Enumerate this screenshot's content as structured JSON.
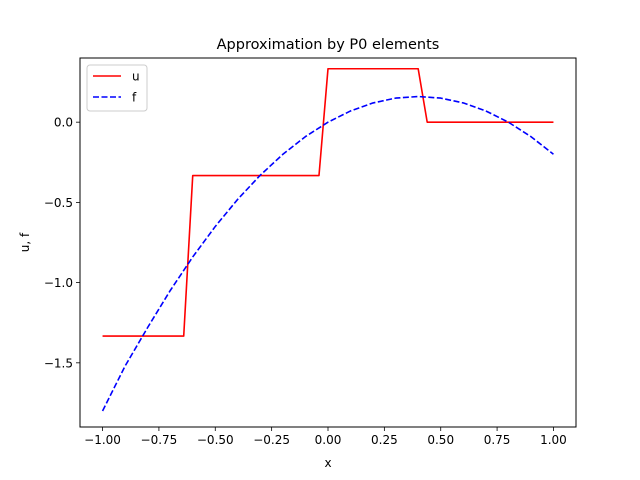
{
  "chart_data": {
    "type": "line",
    "title": "Approximation by P0 elements",
    "xlabel": "x",
    "ylabel": "u, f",
    "xlim": [
      -1.1,
      1.1
    ],
    "ylim": [
      -1.9,
      0.4
    ],
    "xticks": [
      -1.0,
      -0.75,
      -0.5,
      -0.25,
      0.0,
      0.25,
      0.5,
      0.75,
      1.0
    ],
    "xtick_labels": [
      "−1.00",
      "−0.75",
      "−0.50",
      "−0.25",
      "0.00",
      "0.25",
      "0.50",
      "0.75",
      "1.00"
    ],
    "yticks": [
      -1.5,
      -1.0,
      -0.5,
      0.0
    ],
    "ytick_labels": [
      "−1.5",
      "−1.0",
      "−0.5",
      "0.0"
    ],
    "grid": false,
    "legend": "top-left",
    "series": [
      {
        "name": "u",
        "color": "#ff0000",
        "style": "solid",
        "x": [
          -1.0,
          -0.64,
          -0.6,
          -0.04,
          0.0,
          0.4,
          0.44,
          1.0
        ],
        "y": [
          -1.333,
          -1.333,
          -0.333,
          -0.333,
          0.333,
          0.333,
          0.0,
          0.0
        ]
      },
      {
        "name": "f",
        "color": "#0000ff",
        "style": "dashed",
        "x": [
          -1.0,
          -0.9,
          -0.8,
          -0.7,
          -0.6,
          -0.5,
          -0.4,
          -0.3,
          -0.2,
          -0.1,
          0.0,
          0.1,
          0.2,
          0.3,
          0.4,
          0.5,
          0.6,
          0.7,
          0.8,
          0.9,
          1.0
        ],
        "y": [
          -1.8,
          -1.52,
          -1.28,
          -1.05,
          -0.84,
          -0.65,
          -0.48,
          -0.33,
          -0.2,
          -0.09,
          0.0,
          0.07,
          0.12,
          0.15,
          0.16,
          0.15,
          0.12,
          0.07,
          0.0,
          -0.09,
          -0.2
        ]
      }
    ]
  }
}
